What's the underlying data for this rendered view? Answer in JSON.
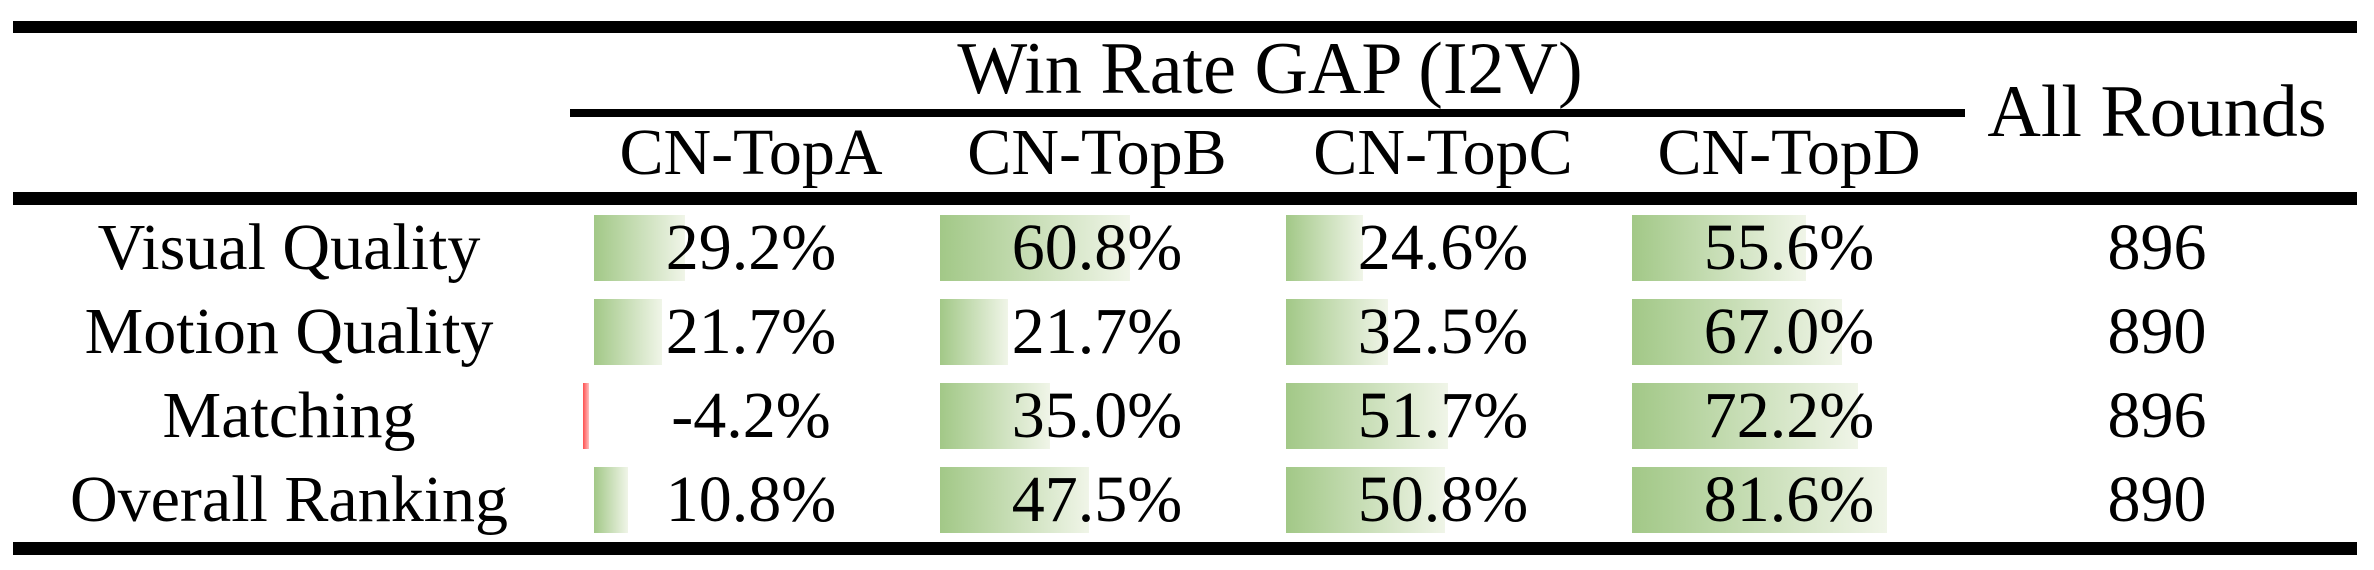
{
  "theme": {
    "background": "#ffffff",
    "rule_color": "#000000",
    "bar_green_start": "#a2c887",
    "bar_green_end": "#f0f5e8",
    "bar_red_start": "#ff5050",
    "bar_red_end": "#ffc0c0"
  },
  "table": {
    "group_header": "Win Rate GAP (I2V)",
    "all_rounds_header": "All Rounds",
    "columns": [
      "CN-TopA",
      "CN-TopB",
      "CN-TopC",
      "CN-TopD"
    ],
    "rows": [
      {
        "label": "Visual Quality",
        "cells": [
          {
            "value": 29.2,
            "display": "29.2%"
          },
          {
            "value": 60.8,
            "display": "60.8%"
          },
          {
            "value": 24.6,
            "display": "24.6%"
          },
          {
            "value": 55.6,
            "display": "55.6%"
          }
        ],
        "all_rounds": "896"
      },
      {
        "label": "Motion Quality",
        "cells": [
          {
            "value": 21.7,
            "display": "21.7%"
          },
          {
            "value": 21.7,
            "display": "21.7%"
          },
          {
            "value": 32.5,
            "display": "32.5%"
          },
          {
            "value": 67.0,
            "display": "67.0%"
          }
        ],
        "all_rounds": "890"
      },
      {
        "label": "Matching",
        "cells": [
          {
            "value": -4.2,
            "display": "-4.2%"
          },
          {
            "value": 35.0,
            "display": "35.0%"
          },
          {
            "value": 51.7,
            "display": "51.7%"
          },
          {
            "value": 72.2,
            "display": "72.2%"
          }
        ],
        "all_rounds": "896"
      },
      {
        "label": "Overall Ranking",
        "cells": [
          {
            "value": 10.8,
            "display": "10.8%"
          },
          {
            "value": 47.5,
            "display": "47.5%"
          },
          {
            "value": 50.8,
            "display": "50.8%"
          },
          {
            "value": 81.6,
            "display": "81.6%"
          }
        ],
        "all_rounds": "890"
      }
    ]
  },
  "chart_data": {
    "type": "table",
    "title": "Win Rate GAP (I2V)",
    "categories": [
      "Visual Quality",
      "Motion Quality",
      "Matching",
      "Overall Ranking"
    ],
    "series": [
      {
        "name": "CN-TopA",
        "values": [
          29.2,
          21.7,
          -4.2,
          10.8
        ]
      },
      {
        "name": "CN-TopB",
        "values": [
          60.8,
          21.7,
          35.0,
          47.5
        ]
      },
      {
        "name": "CN-TopC",
        "values": [
          24.6,
          32.5,
          51.7,
          50.8
        ]
      },
      {
        "name": "CN-TopD",
        "values": [
          55.6,
          67.0,
          72.2,
          81.6
        ]
      }
    ],
    "all_rounds": [
      896,
      890,
      896,
      890
    ],
    "bar_scale_pct_full": 100,
    "notes": "green data bars proportional to percentage; negative value shown as thin red bar"
  }
}
